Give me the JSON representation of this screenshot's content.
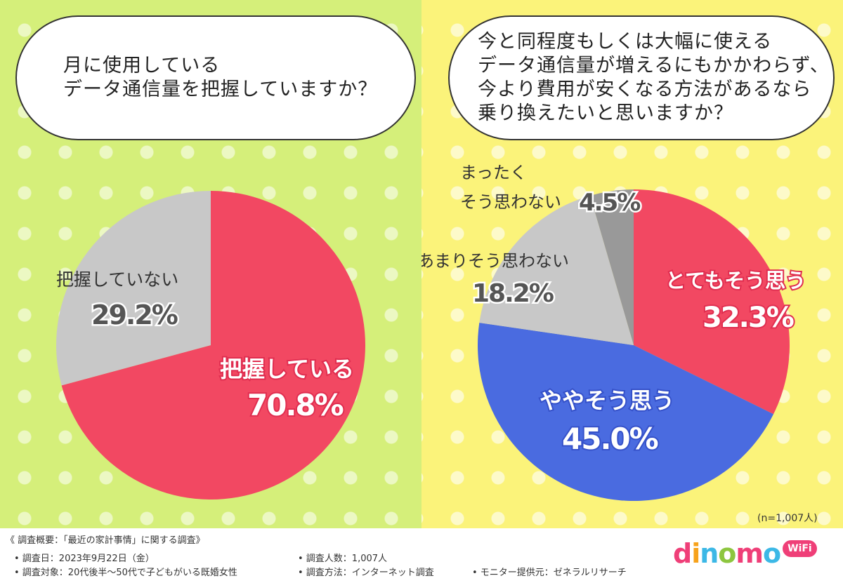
{
  "chart_data": [
    {
      "type": "pie",
      "title": [
        "月に使用している",
        "データ通信量を把握していますか？"
      ],
      "slices": [
        {
          "label": "把握している",
          "value": 70.8,
          "display": "70.8%",
          "color": "#f24862"
        },
        {
          "label": "把握していない",
          "value": 29.2,
          "display": "29.2%",
          "color": "#c8c8c8"
        }
      ],
      "start": "12-o'clock",
      "direction": "clockwise"
    },
    {
      "type": "pie",
      "title": [
        "今と同程度もしくは大幅に使える",
        "データ通信量が増えるにもかかわらず、",
        "今より費用が安くなる方法があるなら",
        "乗り換えたいと思いますか？"
      ],
      "slices": [
        {
          "label": "とてもそう思う",
          "value": 32.3,
          "display": "32.3%",
          "color": "#f24862"
        },
        {
          "label": "ややそう思う",
          "value": 45.0,
          "display": "45.0%",
          "color": "#4a6be0"
        },
        {
          "label": "あまりそう思わない",
          "value": 18.2,
          "display": "18.2%",
          "color": "#c8c8c8"
        },
        {
          "label": "まったく そう思わない",
          "value": 4.5,
          "display": "4.5%",
          "color": "#999999"
        }
      ],
      "start": "12-o'clock",
      "direction": "clockwise",
      "note": "(n=1,007人)"
    }
  ],
  "labels": {
    "left": {
      "aware": {
        "text": "把握している",
        "value": "70.8%"
      },
      "not_aware": {
        "text": "把握していない",
        "value": "29.2%"
      }
    },
    "right": {
      "strongly_agree": {
        "text": "とてもそう思う",
        "value": "32.3%"
      },
      "somewhat_agree": {
        "text": "ややそう思う",
        "value": "45.0%"
      },
      "not_really": {
        "text": "あまりそう思わない",
        "value": "18.2%"
      },
      "not_at_all_1": "まったく",
      "not_at_all_2": "そう思わない",
      "not_at_all_value": "4.5%"
    }
  },
  "footer": {
    "overview": "《 調査概要：「最近の家計事情」に関する調査》",
    "date": "• 調査日：2023年9月22日（金）",
    "respondents": "• 調査人数：1,007人",
    "target": "• 調査対象：20代後半〜50代で子どもがいる既婚女性",
    "method": "• 調査方法：インターネット調査",
    "provider": "• モニター提供元：ゼネラルリサーチ",
    "n_note": "(n=1,007人)"
  },
  "logo": {
    "letters": [
      "d",
      "i",
      "n",
      "o",
      "m",
      "o"
    ],
    "colors": [
      "#ef3f78",
      "#f7a21b",
      "#3cb8e6",
      "#8dc63f",
      "#ef3f78",
      "#3cb8e6"
    ],
    "badge": "WiFi"
  }
}
